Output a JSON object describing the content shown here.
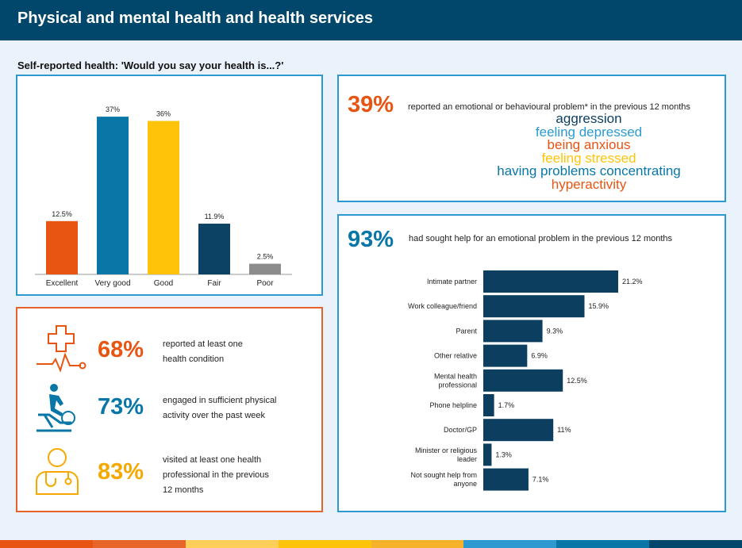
{
  "header": {
    "title": "Physical and mental health and health services"
  },
  "chart_title": "Self-reported health: 'Would you say your health is...?'",
  "chart_data": [
    {
      "type": "bar",
      "categories": [
        "Excellent",
        "Very good",
        "Good",
        "Fair",
        "Poor"
      ],
      "values": [
        12.5,
        37,
        36,
        11.9,
        2.5
      ],
      "value_labels": [
        "12.5%",
        "37%",
        "36%",
        "11.9%",
        "2.5%"
      ],
      "colors": [
        "#e85513",
        "#0877a8",
        "#ffc40a",
        "#0c4264",
        "#8c8c8c"
      ],
      "title": "Self-reported health: 'Would you say your health is...?'",
      "ylim": [
        0,
        40
      ],
      "grid": false
    },
    {
      "type": "bar",
      "orientation": "horizontal",
      "categories": [
        "Intimate partner",
        "Work colleague/friend",
        "Parent",
        "Other relative",
        "Mental health professional",
        "Phone helpline",
        "Doctor/GP",
        "Minister or religious leader",
        "Not sought help from anyone"
      ],
      "values": [
        21.2,
        15.9,
        9.3,
        6.9,
        12.5,
        1.7,
        11,
        1.3,
        7.1
      ],
      "value_labels": [
        "21.2%",
        "15.9%",
        "9.3%",
        "6.9%",
        "12.5%",
        "1.7%",
        "11%",
        "1.3%",
        "7.1%"
      ],
      "color": "#0c3e5f",
      "xlim": [
        0,
        21.2
      ],
      "grid": false
    }
  ],
  "chart_label_lines": [
    [
      "Intimate partner"
    ],
    [
      "Work colleague/friend"
    ],
    [
      "Parent"
    ],
    [
      "Other relative"
    ],
    [
      "Mental health",
      "professional"
    ],
    [
      "Phone helpline"
    ],
    [
      "Doctor/GP"
    ],
    [
      "Minister or religious",
      "leader"
    ],
    [
      "Not sought help from",
      "anyone"
    ]
  ],
  "stats": [
    {
      "percent": "68%",
      "text_lines": [
        "reported at least one",
        "health condition"
      ],
      "icon": "medical-cross-heartbeat-icon",
      "color": "#e85513"
    },
    {
      "percent": "73%",
      "text_lines": [
        "engaged in sufficient physical",
        "activity over the past week"
      ],
      "icon": "exercise-bike-icon",
      "color": "#0877a8"
    },
    {
      "percent": "83%",
      "text_lines": [
        "visited at least one health",
        "professional in the previous",
        "12 months"
      ],
      "icon": "doctor-stethoscope-icon",
      "color": "#f5a800"
    }
  ],
  "emotional": {
    "percent": "39%",
    "text": "reported an emotional or behavioural problem* in the previous 12 months",
    "color": "#e85513",
    "problems": [
      {
        "label": "aggression",
        "color": "#0c3e5f"
      },
      {
        "label": "feeling depressed",
        "color": "#2c9ad1"
      },
      {
        "label": "being anxious",
        "color": "#e85513"
      },
      {
        "label": "feeling stressed",
        "color": "#ffc40a"
      },
      {
        "label": "having problems concentrating",
        "color": "#0877a8"
      },
      {
        "label": "hyperactivity",
        "color": "#e85513"
      }
    ]
  },
  "help": {
    "percent": "93%",
    "text": "had sought help for an emotional problem in the previous 12 months",
    "color": "#0877a8"
  },
  "bottom_strip_colors": [
    "#e85513",
    "#e8662a",
    "#ffcf5a",
    "#ffc40a",
    "#f5b22a",
    "#2c9ad1",
    "#0877a8",
    "#00476b"
  ]
}
